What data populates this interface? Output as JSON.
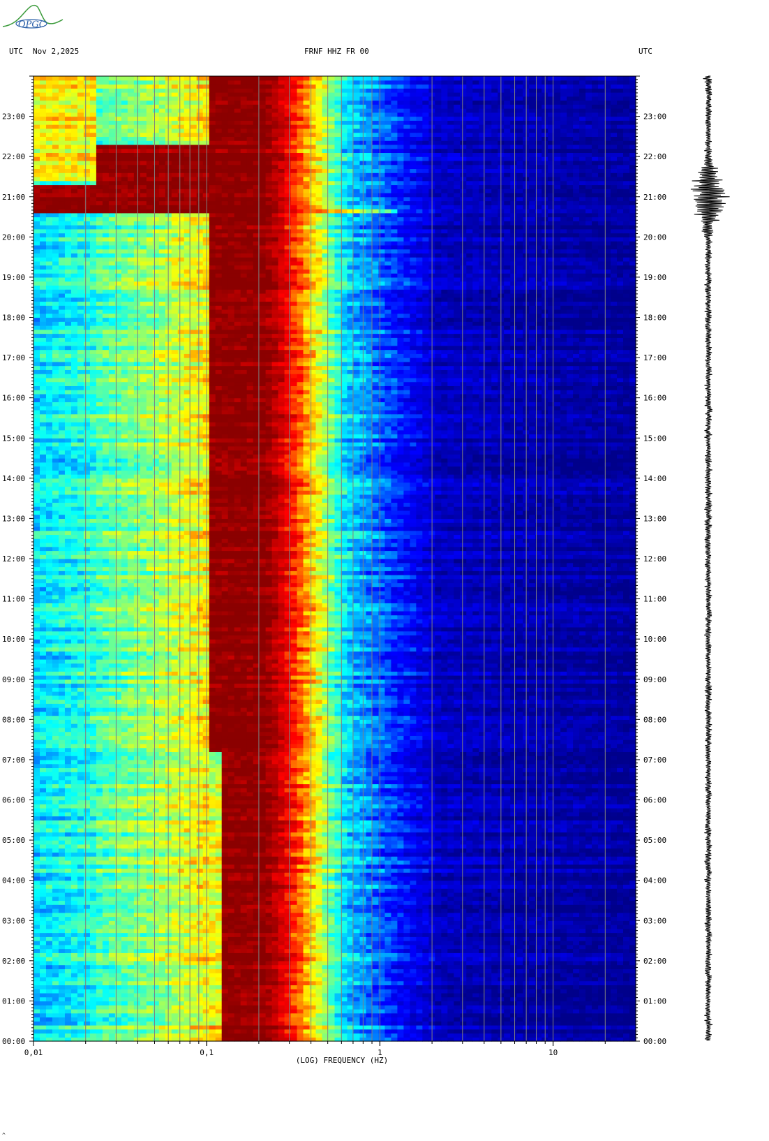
{
  "header": {
    "left_tz": "UTC",
    "date": "Nov 2,2025",
    "station": "FRNF HHZ FR 00",
    "right_tz": "UTC"
  },
  "logo": {
    "text": "OPGC"
  },
  "footer": {
    "mark": "^"
  },
  "chart_data": {
    "type": "heatmap",
    "title": "FRNF HHZ FR 00",
    "xlabel": "(LOG) FREQUENCY (HZ)",
    "ylabel": "",
    "xscale": "log",
    "xlim": [
      0.01,
      30
    ],
    "ylim_hours": [
      0,
      24
    ],
    "x_ticks": [
      "0,01",
      "0,1",
      "1",
      "10"
    ],
    "y_ticks": [
      "00:00",
      "01:00",
      "02:00",
      "03:00",
      "04:00",
      "05:00",
      "06:00",
      "07:00",
      "08:00",
      "09:00",
      "10:00",
      "11:00",
      "12:00",
      "13:00",
      "14:00",
      "15:00",
      "16:00",
      "17:00",
      "18:00",
      "19:00",
      "20:00",
      "21:00",
      "22:00",
      "23:00"
    ],
    "colormap": [
      "#00008b",
      "#0000ff",
      "#00ffff",
      "#ffff00",
      "#ff0000",
      "#8b0000"
    ],
    "grid": true,
    "event": {
      "time_utc": "20:37",
      "max_frequency_hz": 1
    },
    "seismogram": {
      "event_time_utc": "21:00"
    }
  }
}
